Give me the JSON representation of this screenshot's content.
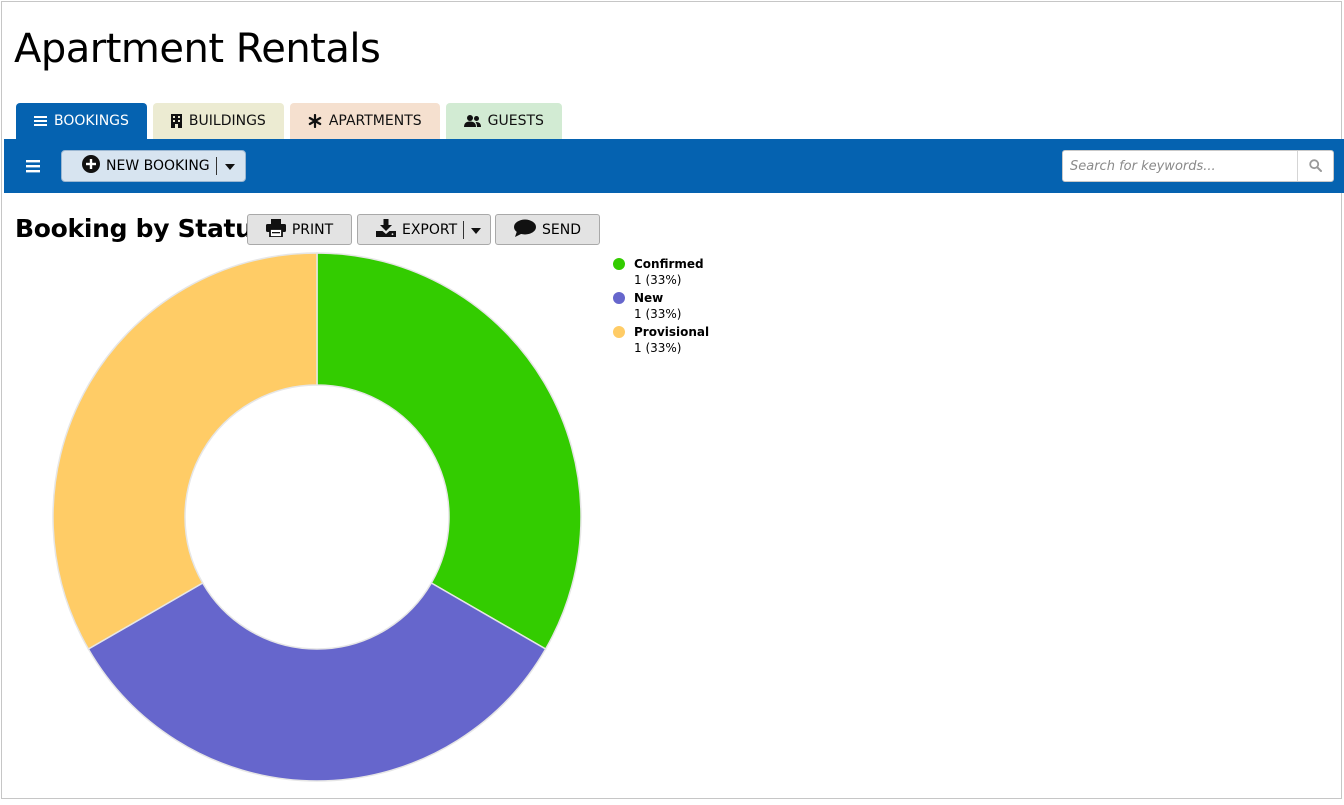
{
  "app": {
    "title": "Apartment Rentals"
  },
  "tabs": [
    {
      "label": "BOOKINGS",
      "icon": "list-icon",
      "active": true,
      "color": "#0562b0"
    },
    {
      "label": "BUILDINGS",
      "icon": "building-icon",
      "active": false,
      "color": "#ecebd2"
    },
    {
      "label": "APARTMENTS",
      "icon": "asterisk-icon",
      "active": false,
      "color": "#f5e0cf"
    },
    {
      "label": "GUESTS",
      "icon": "users-icon",
      "active": false,
      "color": "#d2ebd3"
    }
  ],
  "toolbar": {
    "background": "#0562b0",
    "new_booking_label": "NEW BOOKING",
    "search_placeholder": "Search for keywords..."
  },
  "report": {
    "title": "Booking by Status",
    "print_label": "PRINT",
    "export_label": "EXPORT",
    "send_label": "SEND"
  },
  "chart_data": {
    "type": "pie",
    "variant": "donut",
    "legend_position": "right",
    "categories": [
      "Confirmed",
      "New",
      "Provisional"
    ],
    "values": [
      1,
      1,
      1
    ],
    "value_labels": [
      "1 (33%)",
      "1 (33%)",
      "1 (33%)"
    ],
    "colors": [
      "#33cc00",
      "#6666cc",
      "#ffcc66"
    ]
  }
}
